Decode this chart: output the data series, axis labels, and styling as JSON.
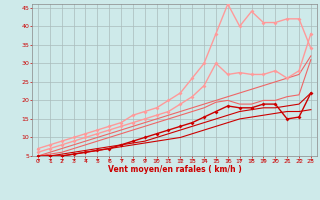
{
  "title": "",
  "xlabel": "Vent moyen/en rafales ( km/h )",
  "ylabel": "",
  "xlim": [
    -0.5,
    23.5
  ],
  "ylim": [
    5,
    46
  ],
  "xticks": [
    0,
    1,
    2,
    3,
    4,
    5,
    6,
    7,
    8,
    9,
    10,
    11,
    12,
    13,
    14,
    15,
    16,
    17,
    18,
    19,
    20,
    21,
    22,
    23
  ],
  "yticks": [
    5,
    10,
    15,
    20,
    25,
    30,
    35,
    40,
    45
  ],
  "background_color": "#ceeaea",
  "grid_color": "#aabcbc",
  "series": [
    {
      "x": [
        0,
        1,
        2,
        3,
        4,
        5,
        6,
        7,
        8,
        9,
        10,
        11,
        12,
        13,
        14,
        15,
        16,
        17,
        18,
        19,
        20,
        21,
        22,
        23
      ],
      "y": [
        5,
        5,
        5,
        5.5,
        6,
        6.5,
        7,
        7.5,
        8,
        8.5,
        9,
        9.5,
        10,
        11,
        12,
        13,
        14,
        15,
        15.5,
        16,
        16.5,
        17,
        17,
        17.5
      ],
      "color": "#cc0000",
      "lw": 0.8,
      "marker": null,
      "ms": 0,
      "zorder": 2
    },
    {
      "x": [
        0,
        1,
        2,
        3,
        4,
        5,
        6,
        7,
        8,
        9,
        10,
        11,
        12,
        13,
        14,
        15,
        16,
        17,
        18,
        19,
        20,
        21,
        22,
        23
      ],
      "y": [
        5,
        5,
        5.5,
        6,
        6.5,
        7,
        7.5,
        8,
        8.5,
        9,
        10,
        11,
        12,
        13,
        14,
        15,
        16,
        17,
        17.5,
        18,
        18,
        18.5,
        19,
        22
      ],
      "color": "#cc0000",
      "lw": 0.8,
      "marker": null,
      "ms": 0,
      "zorder": 2
    },
    {
      "x": [
        0,
        1,
        2,
        3,
        4,
        5,
        6,
        7,
        8,
        9,
        10,
        11,
        12,
        13,
        14,
        15,
        16,
        17,
        18,
        19,
        20,
        21,
        22,
        23
      ],
      "y": [
        5,
        5,
        5,
        5.5,
        6,
        6.5,
        7,
        8,
        9,
        10,
        11,
        12,
        13,
        14,
        15.5,
        17,
        18.5,
        18,
        18,
        19,
        19,
        15,
        15.5,
        22
      ],
      "color": "#cc0000",
      "lw": 1.0,
      "marker": "D",
      "ms": 2.0,
      "zorder": 3
    },
    {
      "x": [
        0,
        1,
        2,
        3,
        4,
        5,
        6,
        7,
        8,
        9,
        10,
        11,
        12,
        13,
        14,
        15,
        16,
        17,
        18,
        19,
        20,
        21,
        22,
        23
      ],
      "y": [
        5,
        5.5,
        6,
        7,
        8,
        9,
        10,
        11,
        12,
        13,
        14,
        15,
        16,
        17,
        18,
        19.5,
        20,
        19,
        19,
        20,
        20,
        21,
        21.5,
        31
      ],
      "color": "#ee6666",
      "lw": 0.8,
      "marker": null,
      "ms": 0,
      "zorder": 2
    },
    {
      "x": [
        0,
        1,
        2,
        3,
        4,
        5,
        6,
        7,
        8,
        9,
        10,
        11,
        12,
        13,
        14,
        15,
        16,
        17,
        18,
        19,
        20,
        21,
        22,
        23
      ],
      "y": [
        5,
        6,
        7,
        8,
        9,
        10,
        11,
        12,
        13,
        14,
        15,
        16,
        17,
        18,
        19,
        20,
        21,
        22,
        23,
        24,
        25,
        26,
        27,
        32
      ],
      "color": "#ee6666",
      "lw": 0.8,
      "marker": null,
      "ms": 0,
      "zorder": 2
    },
    {
      "x": [
        0,
        1,
        2,
        3,
        4,
        5,
        6,
        7,
        8,
        9,
        10,
        11,
        12,
        13,
        14,
        15,
        16,
        17,
        18,
        19,
        20,
        21,
        22,
        23
      ],
      "y": [
        6,
        7,
        8,
        9,
        10,
        11,
        12,
        13,
        14,
        15,
        16,
        17,
        19,
        21,
        24,
        30,
        27,
        27.5,
        27,
        27,
        28,
        26,
        28,
        38
      ],
      "color": "#ff9999",
      "lw": 1.0,
      "marker": "D",
      "ms": 2.0,
      "zorder": 3
    },
    {
      "x": [
        0,
        1,
        2,
        3,
        4,
        5,
        6,
        7,
        8,
        9,
        10,
        11,
        12,
        13,
        14,
        15,
        16,
        17,
        18,
        19,
        20,
        21,
        22,
        23
      ],
      "y": [
        7,
        8,
        9,
        10,
        11,
        12,
        13,
        14,
        16,
        17,
        18,
        20,
        22,
        26,
        30,
        38,
        46,
        40,
        44,
        41,
        41,
        42,
        42,
        34
      ],
      "color": "#ff9999",
      "lw": 1.0,
      "marker": "D",
      "ms": 2.0,
      "zorder": 3
    }
  ]
}
